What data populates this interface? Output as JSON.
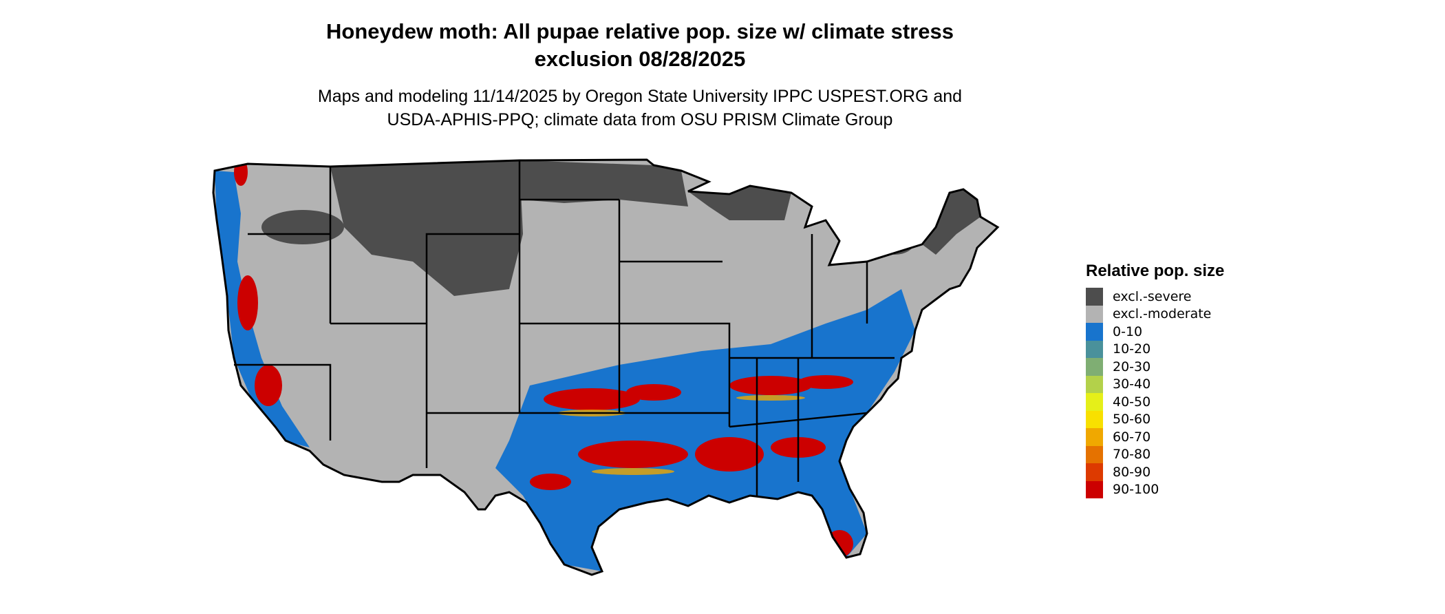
{
  "title_lines": [
    "Honeydew moth: All pupae relative pop. size w/ climate stress",
    "exclusion 08/28/2025"
  ],
  "subtitle_lines": [
    "Maps and modeling 11/14/2025 by Oregon State University IPPC USPEST.ORG and",
    "USDA-APHIS-PPQ; climate data from OSU PRISM Climate Group"
  ],
  "legend": {
    "title": "Relative pop. size",
    "items": [
      {
        "label": "excl.-severe",
        "color": "#4d4d4d"
      },
      {
        "label": "excl.-moderate",
        "color": "#b3b3b3"
      },
      {
        "label": "0-10",
        "color": "#1874cd"
      },
      {
        "label": "10-20",
        "color": "#4a919b"
      },
      {
        "label": "20-30",
        "color": "#7fae73"
      },
      {
        "label": "30-40",
        "color": "#b3d14a"
      },
      {
        "label": "40-50",
        "color": "#e5ef19"
      },
      {
        "label": "50-60",
        "color": "#f8e000"
      },
      {
        "label": "60-70",
        "color": "#f0a800"
      },
      {
        "label": "70-80",
        "color": "#e57200"
      },
      {
        "label": "80-90",
        "color": "#dd3a00"
      },
      {
        "label": "90-100",
        "color": "#cc0000"
      }
    ]
  }
}
